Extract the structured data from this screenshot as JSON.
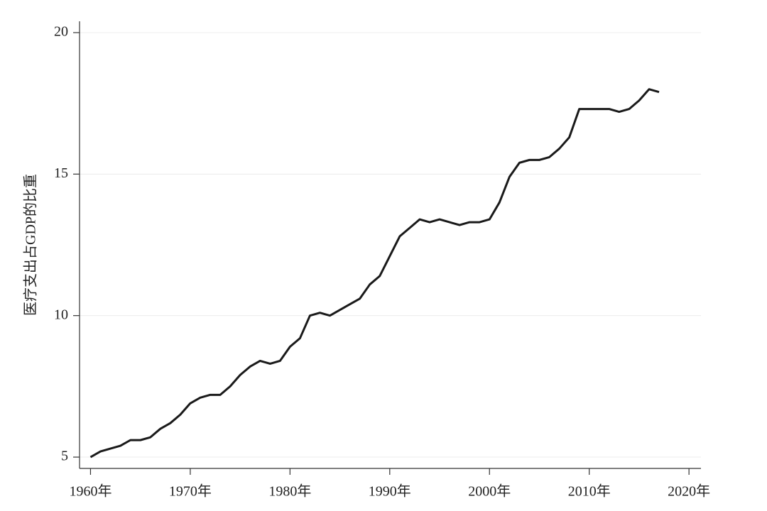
{
  "chart_data": {
    "type": "line",
    "y_label": "医疗支出占GDP的比重",
    "x": [
      1960,
      1961,
      1962,
      1963,
      1964,
      1965,
      1966,
      1967,
      1968,
      1969,
      1970,
      1971,
      1972,
      1973,
      1974,
      1975,
      1976,
      1977,
      1978,
      1979,
      1980,
      1981,
      1982,
      1983,
      1984,
      1985,
      1986,
      1987,
      1988,
      1989,
      1990,
      1991,
      1992,
      1993,
      1994,
      1995,
      1996,
      1997,
      1998,
      1999,
      2000,
      2001,
      2002,
      2003,
      2004,
      2005,
      2006,
      2007,
      2008,
      2009,
      2010,
      2011,
      2012,
      2013,
      2014,
      2015,
      2016,
      2017
    ],
    "values": [
      5.0,
      5.2,
      5.3,
      5.4,
      5.6,
      5.6,
      5.7,
      6.0,
      6.2,
      6.5,
      6.9,
      7.1,
      7.2,
      7.2,
      7.5,
      7.9,
      8.2,
      8.4,
      8.3,
      8.4,
      8.9,
      9.2,
      10.0,
      10.1,
      10.0,
      10.2,
      10.4,
      10.6,
      11.1,
      11.4,
      12.1,
      12.8,
      13.1,
      13.4,
      13.3,
      13.4,
      13.3,
      13.2,
      13.3,
      13.3,
      13.4,
      14.0,
      14.9,
      15.4,
      15.5,
      15.5,
      15.6,
      15.9,
      16.3,
      17.3,
      17.3,
      17.3,
      17.3,
      17.2,
      17.3,
      17.6,
      18.0,
      17.9
    ],
    "color": "#1a1a1a",
    "xlim": [
      1958.9,
      2021.2
    ],
    "ylim": [
      4.6,
      20.4
    ],
    "xticks": [
      {
        "value": 1960,
        "label": "1960年"
      },
      {
        "value": 1970,
        "label": "1970年"
      },
      {
        "value": 1980,
        "label": "1980年"
      },
      {
        "value": 1990,
        "label": "1990年"
      },
      {
        "value": 2000,
        "label": "2000年"
      },
      {
        "value": 2010,
        "label": "2010年"
      },
      {
        "value": 2020,
        "label": "2020年"
      }
    ],
    "yticks": [
      5,
      10,
      15,
      20
    ],
    "grid": true
  }
}
